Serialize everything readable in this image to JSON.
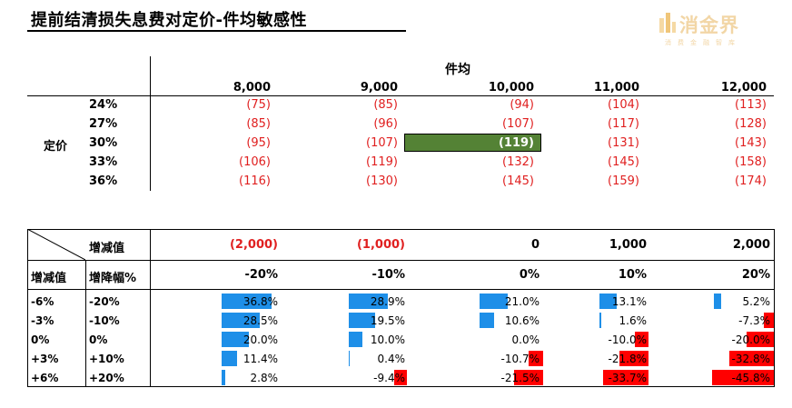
{
  "title": "提前结清损失息费对定价-件均敏感性",
  "logo": {
    "name": "消金界",
    "tagline": "消费金融智库"
  },
  "sensitivity_table": {
    "column_group_label": "件均",
    "row_group_label": "定价",
    "columns": [
      "8,000",
      "9,000",
      "10,000",
      "11,000",
      "12,000"
    ],
    "rows": [
      {
        "label": "24%",
        "values": [
          "(75)",
          "(85)",
          "(94)",
          "(104)",
          "(113)"
        ]
      },
      {
        "label": "27%",
        "values": [
          "(85)",
          "(96)",
          "(107)",
          "(117)",
          "(128)"
        ]
      },
      {
        "label": "30%",
        "values": [
          "(95)",
          "(107)",
          "(119)",
          "(131)",
          "(143)"
        ]
      },
      {
        "label": "33%",
        "values": [
          "(106)",
          "(119)",
          "(132)",
          "(145)",
          "(158)"
        ]
      },
      {
        "label": "36%",
        "values": [
          "(116)",
          "(130)",
          "(145)",
          "(159)",
          "(174)"
        ]
      }
    ],
    "highlight": {
      "row": 2,
      "col": 2,
      "color": "#548235"
    }
  },
  "change_table": {
    "header_change_value_label": "增减值",
    "header_change_values": [
      {
        "text": "(2,000)",
        "negative": true
      },
      {
        "text": "(1,000)",
        "negative": true
      },
      {
        "text": "0",
        "negative": false
      },
      {
        "text": "1,000",
        "negative": false
      },
      {
        "text": "2,000",
        "negative": false
      }
    ],
    "header_row_value_label": "增减值",
    "header_pct_label": "增降幅%",
    "header_pcts": [
      "-20%",
      "-10%",
      "0%",
      "10%",
      "20%"
    ],
    "rows": [
      {
        "value": "-6%",
        "pct": "-20%",
        "cells": [
          36.8,
          28.9,
          21.0,
          13.1,
          5.2
        ],
        "labels": [
          "36.8%",
          "28.9%",
          "21.0%",
          "13.1%",
          "5.2%"
        ]
      },
      {
        "value": "-3%",
        "pct": "-10%",
        "cells": [
          28.5,
          19.5,
          10.6,
          1.6,
          -7.3
        ],
        "labels": [
          "28.5%",
          "19.5%",
          "10.6%",
          "1.6%",
          "-7.3%"
        ]
      },
      {
        "value": "0%",
        "pct": "0%",
        "cells": [
          20.0,
          10.0,
          0.0,
          -10.0,
          -20.0
        ],
        "labels": [
          "20.0%",
          "10.0%",
          "0.0%",
          "-10.0%",
          "-20.0%"
        ]
      },
      {
        "value": "+3%",
        "pct": "+10%",
        "cells": [
          11.4,
          0.4,
          -10.7,
          -21.8,
          -32.8
        ],
        "labels": [
          "11.4%",
          "0.4%",
          "-10.7%",
          "-21.8%",
          "-32.8%"
        ]
      },
      {
        "value": "+6%",
        "pct": "+20%",
        "cells": [
          2.8,
          -9.4,
          -21.5,
          -33.7,
          -45.8
        ],
        "labels": [
          "2.8%",
          "-9.4%",
          "-21.5%",
          "-33.7%",
          "-45.8%"
        ]
      }
    ],
    "colors": {
      "positive": "#1e8fe8",
      "negative": "#ff0000"
    }
  }
}
